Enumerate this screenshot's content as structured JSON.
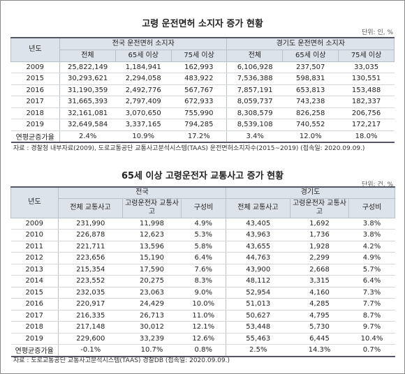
{
  "table1": {
    "title": "고령 운전면허 소지자 증가 현황",
    "unit": "단위: 인, %",
    "header": {
      "year": "년도",
      "group1": "전국 운전면허 소지자",
      "group2": "경기도 운전면허 소지자",
      "sub": [
        "전체",
        "65세 이상",
        "75세 이상",
        "전체",
        "65세 이상",
        "75세 이상"
      ]
    },
    "rows": [
      [
        "2009",
        "25,822,149",
        "1,184,941",
        "162,993",
        "6,106,928",
        "237,507",
        "33,035"
      ],
      [
        "2015",
        "30,293,621",
        "2,294,058",
        "483,922",
        "7,536,388",
        "598,831",
        "130,551"
      ],
      [
        "2016",
        "31,190,359",
        "2,492,776",
        "567,767",
        "7,857,191",
        "653,813",
        "153,488"
      ],
      [
        "2017",
        "31,665,393",
        "2,797,409",
        "672,933",
        "8,059,737",
        "743,238",
        "182,337"
      ],
      [
        "2018",
        "32,161,081",
        "3,070,650",
        "755,990",
        "8,308,579",
        "826,258",
        "206,756"
      ],
      [
        "2019",
        "32,649,584",
        "3,337,165",
        "794,285",
        "8,539,108",
        "740,552",
        "172,217"
      ],
      [
        "연평균증가율",
        "2.4%",
        "10.9%",
        "17.2%",
        "3.4%",
        "12.0%",
        "18.0%"
      ]
    ],
    "source": "자료 : 경찰청 내부자료(2009), 도로교통공단 교통사고분석시스템(TAAS) 운전면허소지자수(2015~2019) (접속일: 2020.09.09.)"
  },
  "table2": {
    "title": "65세 이상 고령운전자 교통사고 증가 현황",
    "unit": "단위: 건, %",
    "header": {
      "year": "년도",
      "group1": "전국",
      "group2": "경기도",
      "sub": [
        "전체 교통사고",
        "고령운전자 교통사고",
        "구성비",
        "전체 교통사고",
        "고령운전자 교통사고",
        "구성비"
      ]
    },
    "rows": [
      [
        "2009",
        "231,990",
        "11,998",
        "4.9%",
        "43,405",
        "1,692",
        "3.8%"
      ],
      [
        "2010",
        "226,878",
        "12,623",
        "5.3%",
        "43,963",
        "1,736",
        "3.8%"
      ],
      [
        "2011",
        "221,711",
        "13,596",
        "5.8%",
        "43,655",
        "1,928",
        "4.2%"
      ],
      [
        "2012",
        "223,656",
        "15,190",
        "6.4%",
        "44,763",
        "2,299",
        "4.9%"
      ],
      [
        "2013",
        "215,354",
        "17,590",
        "7.6%",
        "43,900",
        "2,668",
        "5.7%"
      ],
      [
        "2014",
        "223,552",
        "20,275",
        "8.3%",
        "48,112",
        "3,315",
        "6.4%"
      ],
      [
        "2015",
        "232,035",
        "23,063",
        "9.0%",
        "52,954",
        "4,160",
        "7.3%"
      ],
      [
        "2016",
        "220,917",
        "24,429",
        "10.0%",
        "51,013",
        "4,285",
        "7.7%"
      ],
      [
        "2017",
        "216,335",
        "26,713",
        "11.0%",
        "50,627",
        "4,795",
        "8.7%"
      ],
      [
        "2018",
        "217,148",
        "30,012",
        "12.1%",
        "53,448",
        "5,730",
        "9.7%"
      ],
      [
        "2019",
        "229,600",
        "33,239",
        "12.6%",
        "55,463",
        "6,445",
        "10.4%"
      ],
      [
        "연평균증가율",
        "-0.1%",
        "10.7%",
        "0.8%",
        "2.5%",
        "14.3%",
        "0.7%"
      ]
    ],
    "source": "자료 : 도로교통공단 교통사고분석시스템(TAAS) 경찰DB (접속일: 2020.09.09.)"
  }
}
